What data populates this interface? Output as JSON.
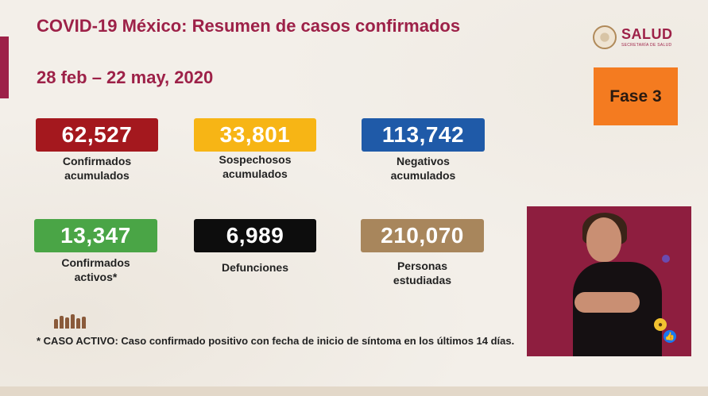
{
  "header": {
    "title": "COVID-19 México: Resumen de casos confirmados",
    "date_range": "28 feb – 22 may, 2020"
  },
  "logo": {
    "name": "SALUD",
    "subtitle": "SECRETARÍA DE SALUD"
  },
  "phase": {
    "label": "Fase 3",
    "color": "#f47b20"
  },
  "stats": [
    {
      "value": "62,527",
      "label": "Confirmados\nacumulados",
      "color": "#a4181e"
    },
    {
      "value": "33,801",
      "label": "Sospechosos\nacumulados",
      "color": "#f7b515"
    },
    {
      "value": "113,742",
      "label": "Negativos\nacumulados",
      "color": "#1f5aa8"
    },
    {
      "value": "13,347",
      "label": "Confirmados\nactivos*",
      "color": "#4aa546"
    },
    {
      "value": "6,989",
      "label": "Defunciones",
      "color": "#0d0d0d"
    },
    {
      "value": "210,070",
      "label": "Personas\nestudiadas",
      "color": "#a8865c"
    }
  ],
  "footnote": "* CASO ACTIVO: Caso confirmado positivo con fecha de inicio de síntoma en los últimos 14 días.",
  "video": {
    "icon": "sign-language-interpreter-video"
  },
  "reactions": [
    "wow-reaction-icon",
    "like-reaction-icon",
    "angry-reaction-icon"
  ]
}
